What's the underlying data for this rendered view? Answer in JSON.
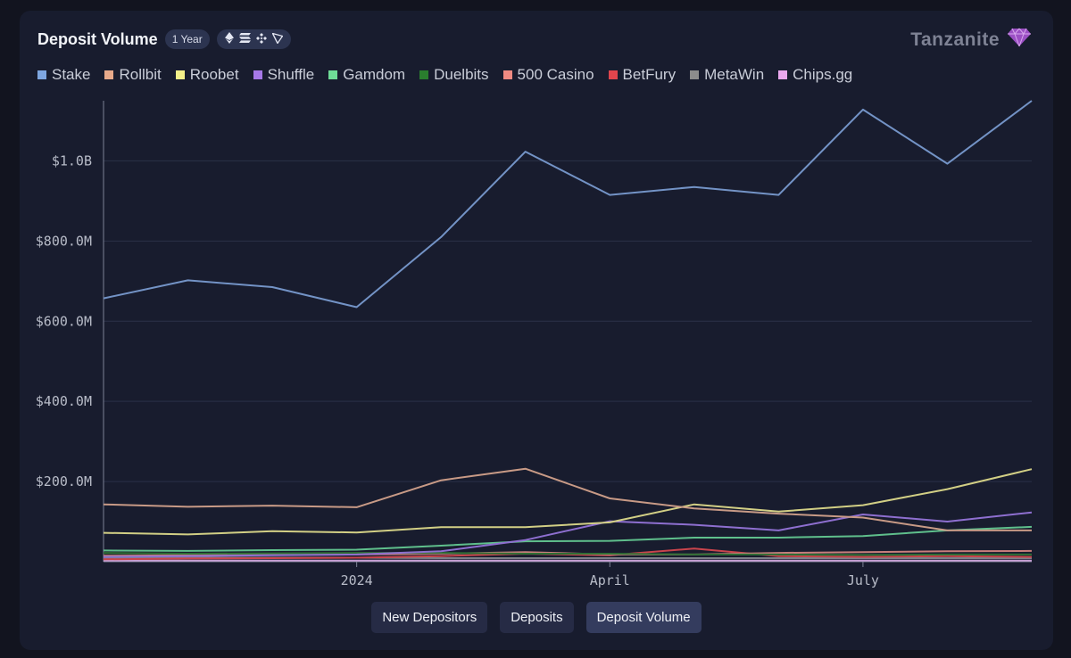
{
  "header": {
    "title": "Deposit Volume",
    "period": "1 Year",
    "chain_icons": [
      "ethereum-icon",
      "solana-icon",
      "bnb-icon",
      "tron-icon"
    ]
  },
  "brand": {
    "name": "Tanzanite",
    "icon": "gem-icon",
    "color": "#9b4fc4"
  },
  "buttons": [
    {
      "label": "New Depositors",
      "active": false
    },
    {
      "label": "Deposits",
      "active": false
    },
    {
      "label": "Deposit Volume",
      "active": true
    }
  ],
  "chart_data": {
    "type": "line",
    "x": [
      "2023-10",
      "2023-11",
      "2023-12",
      "2024-01",
      "2024-02",
      "2024-03",
      "2024-04",
      "2024-05",
      "2024-06",
      "2024-07",
      "2024-08",
      "2024-09"
    ],
    "x_ticks": [
      {
        "label": "2024",
        "x": "2024-01"
      },
      {
        "label": "April",
        "x": "2024-04"
      },
      {
        "label": "July",
        "x": "2024-07"
      }
    ],
    "y_ticks": [
      {
        "label": "$200.0M",
        "value": 200000000
      },
      {
        "label": "$400.0M",
        "value": 400000000
      },
      {
        "label": "$600.0M",
        "value": 600000000
      },
      {
        "label": "$800.0M",
        "value": 800000000
      },
      {
        "label": "$1.0B",
        "value": 1000000000
      }
    ],
    "ylim": [
      0,
      1150000000
    ],
    "grid": true,
    "legend_position": "top-left",
    "series": [
      {
        "name": "Stake",
        "color": "#7ea6e0",
        "line_color": "#7393c6",
        "values": [
          657000000,
          702000000,
          685000000,
          635000000,
          810000000,
          1023000000,
          915000000,
          935000000,
          915000000,
          1128000000,
          993000000,
          1150000000
        ]
      },
      {
        "name": "Rollbit",
        "color": "#e7a98a",
        "line_color": "#c89a86",
        "values": [
          143000000,
          137000000,
          140000000,
          136000000,
          203000000,
          232000000,
          158000000,
          133000000,
          120000000,
          110000000,
          78000000,
          78000000
        ]
      },
      {
        "name": "Roobet",
        "color": "#f4f089",
        "line_color": "#d2cf85",
        "values": [
          72000000,
          68000000,
          76000000,
          73000000,
          86000000,
          86000000,
          98000000,
          143000000,
          125000000,
          141000000,
          181000000,
          231000000
        ]
      },
      {
        "name": "Shuffle",
        "color": "#a678e8",
        "line_color": "#8e6fd0",
        "values": [
          12000000,
          14000000,
          16000000,
          18000000,
          26000000,
          54000000,
          101000000,
          92000000,
          78000000,
          118000000,
          100000000,
          123000000
        ]
      },
      {
        "name": "Gamdom",
        "color": "#6fdc97",
        "line_color": "#5fbf8c",
        "values": [
          28000000,
          27000000,
          29000000,
          30000000,
          40000000,
          51000000,
          52000000,
          60000000,
          60000000,
          64000000,
          78000000,
          87000000
        ]
      },
      {
        "name": "Duelbits",
        "color": "#2a7d2e",
        "line_color": "#2f6f35",
        "values": [
          22000000,
          20000000,
          21000000,
          22000000,
          22000000,
          20000000,
          20000000,
          18000000,
          18000000,
          17000000,
          18000000,
          18000000
        ]
      },
      {
        "name": "500 Casino",
        "color": "#ef8a82",
        "line_color": "#c87f7c",
        "values": [
          15000000,
          16000000,
          18000000,
          18000000,
          20000000,
          24000000,
          18000000,
          18000000,
          22000000,
          24000000,
          26000000,
          27000000
        ]
      },
      {
        "name": "BetFury",
        "color": "#e0454d",
        "line_color": "#c9444c",
        "values": [
          6000000,
          8000000,
          9000000,
          10000000,
          14000000,
          20000000,
          16000000,
          33000000,
          14000000,
          12000000,
          14000000,
          12000000
        ]
      },
      {
        "name": "MetaWin",
        "color": "#8c8c8c",
        "line_color": "#7d7f88",
        "values": [
          10000000,
          10000000,
          10000000,
          10000000,
          9000000,
          9000000,
          9000000,
          9000000,
          9000000,
          9000000,
          9000000,
          9000000
        ]
      },
      {
        "name": "Chips.gg",
        "color": "#eba8ee",
        "line_color": "#c89fd6",
        "values": [
          3000000,
          3000000,
          3000000,
          3000000,
          3000000,
          3000000,
          3000000,
          3000000,
          3000000,
          3000000,
          3000000,
          3000000
        ]
      }
    ]
  }
}
